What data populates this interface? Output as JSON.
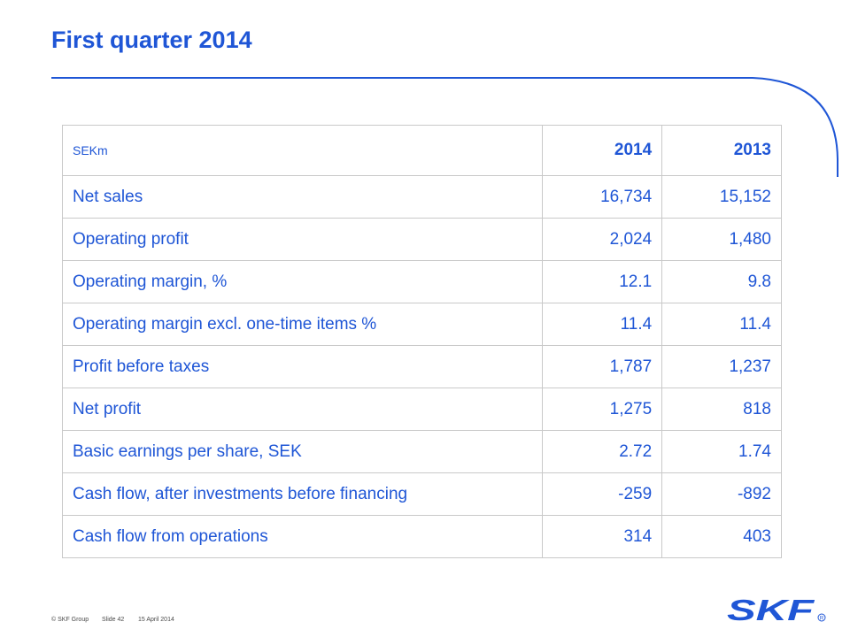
{
  "slide": {
    "title": "First quarter 2014",
    "accent_color": "#1f56d6",
    "logo_color": "#1f56d6"
  },
  "table": {
    "unit": "SEKm",
    "columns": [
      "2014",
      "2013"
    ],
    "rows": [
      {
        "label": "Net sales",
        "values": [
          "16,734",
          "15,152"
        ]
      },
      {
        "label": "Operating profit",
        "values": [
          "2,024",
          "1,480"
        ]
      },
      {
        "label": "Operating margin, %",
        "values": [
          "12.1",
          "9.8"
        ]
      },
      {
        "label": "Operating margin excl. one-time items %",
        "values": [
          "11.4",
          "11.4"
        ]
      },
      {
        "label": "Profit before taxes",
        "values": [
          "1,787",
          "1,237"
        ]
      },
      {
        "label": "Net profit",
        "values": [
          "1,275",
          "818"
        ]
      },
      {
        "label": "Basic earnings per share, SEK",
        "values": [
          "2.72",
          "1.74"
        ]
      },
      {
        "label": "Cash flow, after investments before financing",
        "values": [
          "-259",
          "-892"
        ]
      },
      {
        "label": "Cash flow from operations",
        "values": [
          "314",
          "403"
        ]
      }
    ]
  },
  "footer": {
    "copyright": "© SKF Group",
    "slide_number": "Slide 42",
    "date": "15 April 2014"
  },
  "logo": {
    "icon": "skf-logo-icon",
    "text": "SKF"
  }
}
